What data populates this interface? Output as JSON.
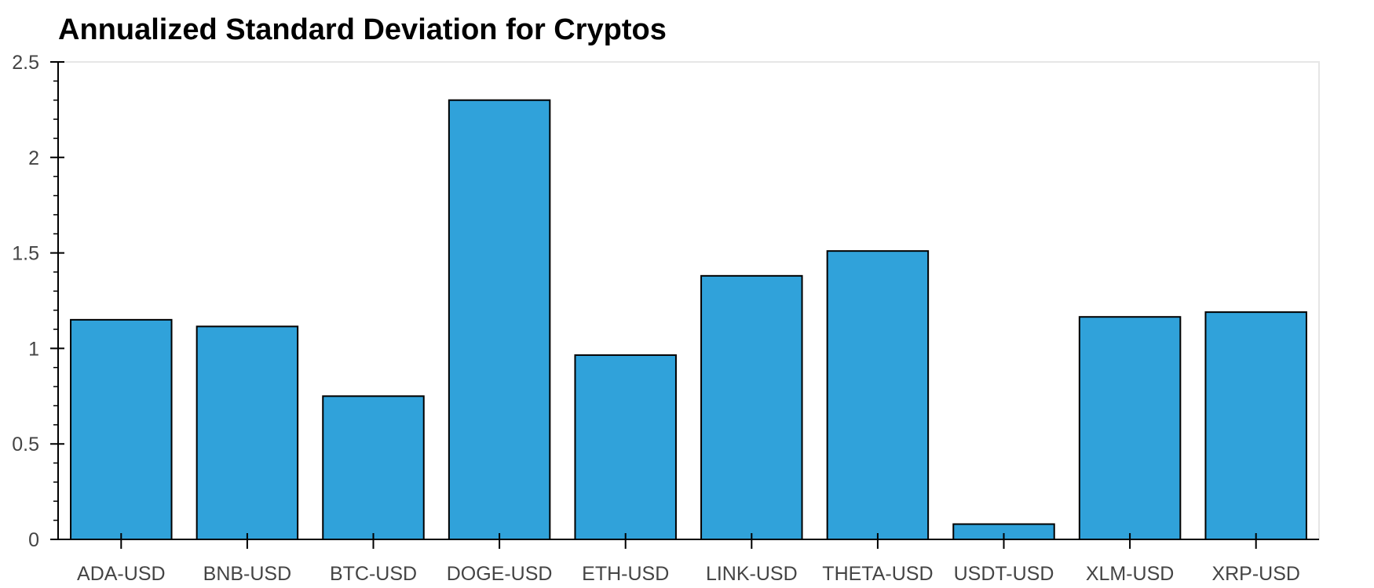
{
  "chart_data": {
    "type": "bar",
    "title": "Annualized Standard Deviation for Cryptos",
    "xlabel": "",
    "ylabel": "",
    "categories": [
      "ADA-USD",
      "BNB-USD",
      "BTC-USD",
      "DOGE-USD",
      "ETH-USD",
      "LINK-USD",
      "THETA-USD",
      "USDT-USD",
      "XLM-USD",
      "XRP-USD"
    ],
    "values": [
      1.15,
      1.115,
      0.75,
      2.3,
      0.965,
      1.38,
      1.51,
      0.08,
      1.165,
      1.19
    ],
    "ylim": [
      0,
      2.5
    ],
    "yticks": [
      0,
      0.5,
      1,
      1.5,
      2,
      2.5
    ],
    "ytick_labels": [
      "0",
      "0.5",
      "1",
      "1.5",
      "2",
      "2.5"
    ],
    "grid": false,
    "legend": "none",
    "bar_color": "#30a2da",
    "edge_color": "#000000"
  }
}
